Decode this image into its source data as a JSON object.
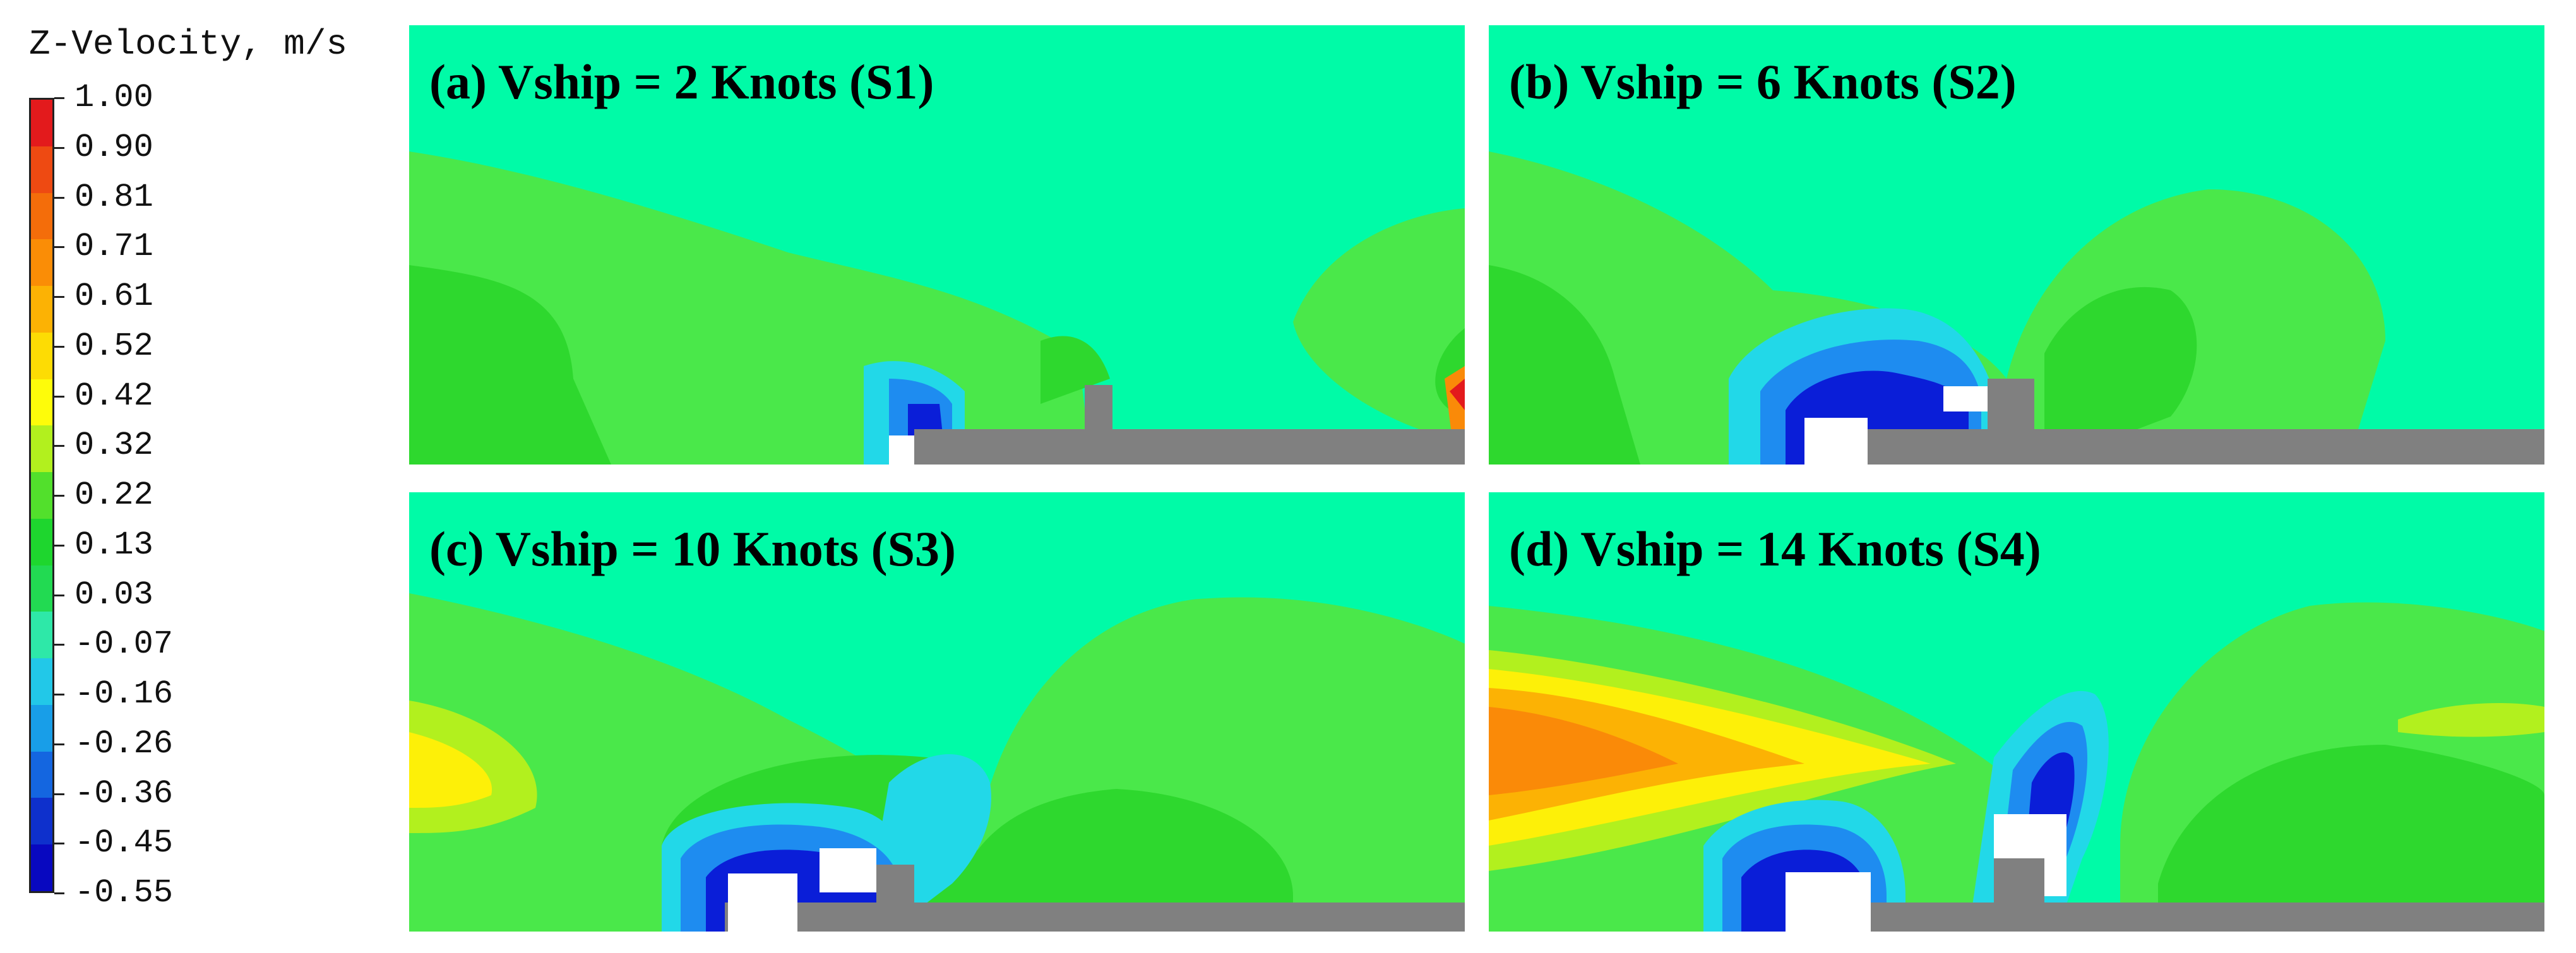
{
  "colorbar": {
    "title": "Z-Velocity, m/s",
    "ticks": [
      "1.00",
      "0.90",
      "0.81",
      "0.71",
      "0.61",
      "0.52",
      "0.42",
      "0.32",
      "0.22",
      "0.13",
      "0.03",
      "-0.07",
      "-0.16",
      "-0.26",
      "-0.36",
      "-0.45",
      "-0.55"
    ],
    "colors": [
      "#e31a1c",
      "#ee4a12",
      "#f46d0a",
      "#fa8d06",
      "#fcb204",
      "#fddc04",
      "#fefc0a",
      "#b2f01e",
      "#52e02c",
      "#1ed62e",
      "#22da52",
      "#2ee8a8",
      "#22c8e8",
      "#189ee8",
      "#1466e0",
      "#0e30cc",
      "#0808c0"
    ]
  },
  "panels": [
    {
      "id": "a",
      "label": "(a)  Vship = 2 Knots (S1)"
    },
    {
      "id": "b",
      "label": "(b)  Vship = 6 Knots (S2)"
    },
    {
      "id": "c",
      "label": "(c)  Vship = 10 Knots (S3)"
    },
    {
      "id": "d",
      "label": "(d)  Vship = 14 Knots (S4)"
    }
  ],
  "palette": {
    "background": "#00fba7",
    "green_light": "#4ae84a",
    "green_mid": "#2ed82e",
    "cyan": "#22d8e8",
    "blue_light": "#1e8cf0",
    "blue_dark": "#0a1ed8",
    "yellow": "#fdf008",
    "orange": "#fa8a08",
    "ship": "#808080",
    "void": "#ffffff"
  }
}
